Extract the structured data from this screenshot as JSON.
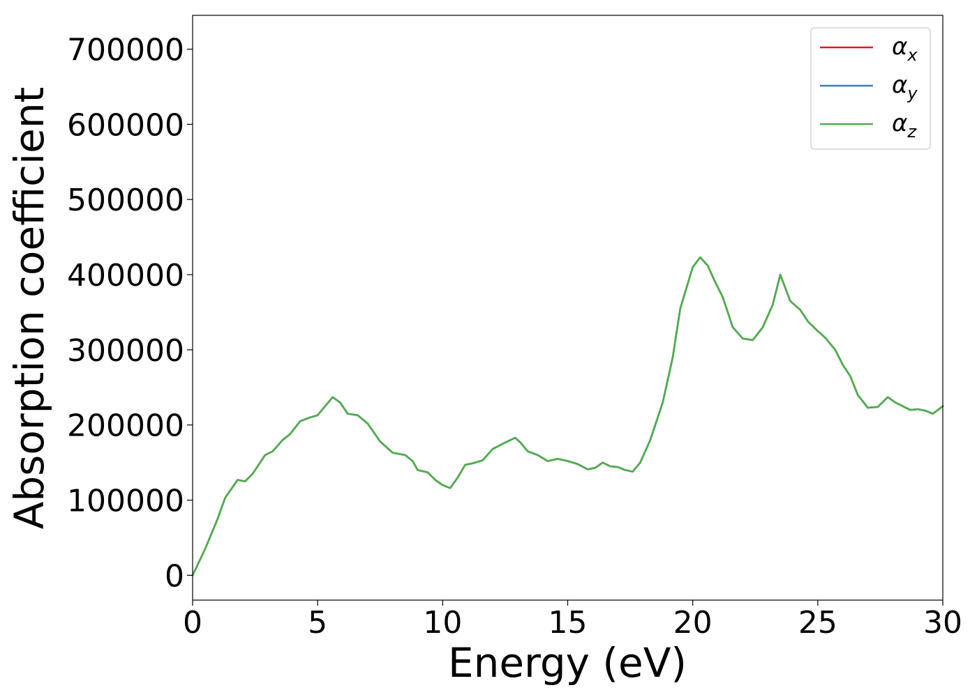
{
  "chart_data": {
    "type": "line",
    "title": "",
    "xlabel": "Energy (eV)",
    "ylabel": "Absorption coefficient",
    "xlim": [
      0,
      30
    ],
    "ylim": [
      -33000,
      745000
    ],
    "xticks": [
      0,
      5,
      10,
      15,
      20,
      25,
      30
    ],
    "xtick_labels": [
      "0",
      "5",
      "10",
      "15",
      "20",
      "25",
      "30"
    ],
    "yticks": [
      0,
      100000,
      200000,
      300000,
      400000,
      500000,
      600000,
      700000
    ],
    "ytick_labels": [
      "0",
      "100000",
      "200000",
      "300000",
      "400000",
      "500000",
      "600000",
      "700000"
    ],
    "grid": false,
    "legend_position": "top-right",
    "x": [
      0,
      0.5,
      1.0,
      1.3,
      1.8,
      2.1,
      2.4,
      2.9,
      3.2,
      3.6,
      3.9,
      4.3,
      4.7,
      5.0,
      5.3,
      5.6,
      5.9,
      6.2,
      6.6,
      7.0,
      7.5,
      8.0,
      8.5,
      8.8,
      9.0,
      9.4,
      9.7,
      10.0,
      10.3,
      10.6,
      10.9,
      11.2,
      11.6,
      12.0,
      12.4,
      12.9,
      13.1,
      13.4,
      13.8,
      14.2,
      14.6,
      15.0,
      15.4,
      15.8,
      16.1,
      16.4,
      16.7,
      17.0,
      17.3,
      17.6,
      17.9,
      18.3,
      18.8,
      19.2,
      19.5,
      19.8,
      20.0,
      20.3,
      20.6,
      20.9,
      21.2,
      21.6,
      22.0,
      22.4,
      22.8,
      23.2,
      23.5,
      23.9,
      24.3,
      24.6,
      24.9,
      25.3,
      25.7,
      26.0,
      26.3,
      26.6,
      27.0,
      27.4,
      27.8,
      28.1,
      28.4,
      28.7,
      29.0,
      29.3,
      29.6,
      30.0
    ],
    "series": [
      {
        "name": "α_x",
        "color": "#e41a1c",
        "values": [
          0,
          35000,
          75000,
          103000,
          127000,
          125000,
          135000,
          160000,
          165000,
          180000,
          188000,
          205000,
          210000,
          213000,
          225000,
          237000,
          230000,
          215000,
          213000,
          202000,
          178000,
          163000,
          160000,
          152000,
          140000,
          137000,
          127000,
          120000,
          116000,
          130000,
          147000,
          149000,
          153000,
          168000,
          175000,
          183000,
          177000,
          165000,
          160000,
          152000,
          155000,
          152000,
          148000,
          141000,
          143000,
          150000,
          145000,
          144000,
          140000,
          138000,
          150000,
          180000,
          230000,
          290000,
          355000,
          388000,
          410000,
          423000,
          412000,
          390000,
          370000,
          330000,
          315000,
          313000,
          330000,
          360000,
          400000,
          365000,
          353000,
          338000,
          328000,
          316000,
          300000,
          280000,
          265000,
          240000,
          223000,
          224000,
          237000,
          230000,
          225000,
          220000,
          221000,
          219000,
          215000,
          225000
        ]
      },
      {
        "name": "α_y",
        "color": "#377eb8",
        "values": [
          0,
          35000,
          75000,
          103000,
          127000,
          125000,
          135000,
          160000,
          165000,
          180000,
          188000,
          205000,
          210000,
          213000,
          225000,
          237000,
          230000,
          215000,
          213000,
          202000,
          178000,
          163000,
          160000,
          152000,
          140000,
          137000,
          127000,
          120000,
          116000,
          130000,
          147000,
          149000,
          153000,
          168000,
          175000,
          183000,
          177000,
          165000,
          160000,
          152000,
          155000,
          152000,
          148000,
          141000,
          143000,
          150000,
          145000,
          144000,
          140000,
          138000,
          150000,
          180000,
          230000,
          290000,
          355000,
          388000,
          410000,
          423000,
          412000,
          390000,
          370000,
          330000,
          315000,
          313000,
          330000,
          360000,
          400000,
          365000,
          353000,
          338000,
          328000,
          316000,
          300000,
          280000,
          265000,
          240000,
          223000,
          224000,
          237000,
          230000,
          225000,
          220000,
          221000,
          219000,
          215000,
          225000
        ]
      },
      {
        "name": "α_z",
        "color": "#4daf4a",
        "values": [
          0,
          35000,
          75000,
          103000,
          127000,
          125000,
          135000,
          160000,
          165000,
          180000,
          188000,
          205000,
          210000,
          213000,
          225000,
          237000,
          230000,
          215000,
          213000,
          202000,
          178000,
          163000,
          160000,
          152000,
          140000,
          137000,
          127000,
          120000,
          116000,
          130000,
          147000,
          149000,
          153000,
          168000,
          175000,
          183000,
          177000,
          165000,
          160000,
          152000,
          155000,
          152000,
          148000,
          141000,
          143000,
          150000,
          145000,
          144000,
          140000,
          138000,
          150000,
          180000,
          230000,
          290000,
          355000,
          388000,
          410000,
          423000,
          412000,
          390000,
          370000,
          330000,
          315000,
          313000,
          330000,
          360000,
          400000,
          365000,
          353000,
          338000,
          328000,
          316000,
          300000,
          280000,
          265000,
          240000,
          223000,
          224000,
          237000,
          230000,
          225000,
          220000,
          221000,
          219000,
          215000,
          225000
        ]
      }
    ],
    "legend": [
      {
        "symbol": "α",
        "sub": "x",
        "color": "#e41a1c"
      },
      {
        "symbol": "α",
        "sub": "y",
        "color": "#377eb8"
      },
      {
        "symbol": "α",
        "sub": "z",
        "color": "#4daf4a"
      }
    ]
  }
}
